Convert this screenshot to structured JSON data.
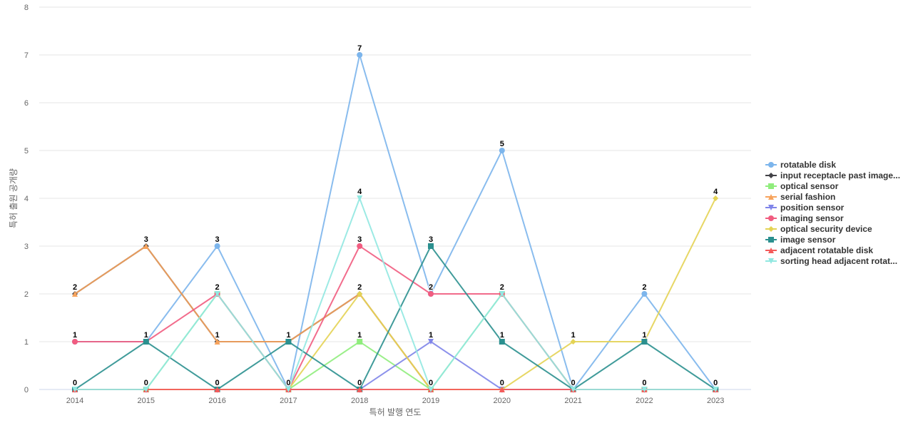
{
  "chart_data": {
    "type": "line",
    "xlabel": "특허 발행 연도",
    "ylabel": "특허 출원 공개량",
    "ylim": [
      0,
      8
    ],
    "yticks": [
      0,
      1,
      2,
      3,
      4,
      5,
      6,
      7,
      8
    ],
    "categories": [
      "2014",
      "2015",
      "2016",
      "2017",
      "2018",
      "2019",
      "2020",
      "2021",
      "2022",
      "2023"
    ],
    "grid": true,
    "legend_position": "right",
    "series": [
      {
        "name": "rotatable disk",
        "color": "#7cb5ec",
        "marker": "circle",
        "values": [
          1,
          1,
          3,
          0,
          7,
          2,
          5,
          0,
          2,
          0
        ]
      },
      {
        "name": "input receptacle past image...",
        "color": "#434348",
        "marker": "diamond",
        "values": [
          2,
          3,
          1,
          1,
          2,
          0,
          0,
          0,
          0,
          0
        ]
      },
      {
        "name": "optical sensor",
        "color": "#90ed7d",
        "marker": "square",
        "values": [
          0,
          0,
          2,
          0,
          1,
          0,
          2,
          0,
          0,
          0
        ]
      },
      {
        "name": "serial fashion",
        "color": "#f7a35c",
        "marker": "triangle",
        "values": [
          2,
          3,
          1,
          1,
          2,
          0,
          0,
          0,
          0,
          0
        ]
      },
      {
        "name": "position sensor",
        "color": "#8085e9",
        "marker": "triangle-down",
        "values": [
          0,
          0,
          0,
          0,
          0,
          1,
          0,
          0,
          0,
          0
        ]
      },
      {
        "name": "imaging sensor",
        "color": "#f15c80",
        "marker": "circle",
        "values": [
          1,
          1,
          2,
          0,
          3,
          2,
          2,
          0,
          0,
          0
        ]
      },
      {
        "name": "optical security device",
        "color": "#e4d354",
        "marker": "diamond",
        "values": [
          0,
          0,
          0,
          0,
          2,
          0,
          0,
          1,
          1,
          4
        ]
      },
      {
        "name": "image sensor",
        "color": "#2b908f",
        "marker": "square",
        "values": [
          0,
          1,
          0,
          1,
          0,
          3,
          1,
          0,
          1,
          0
        ]
      },
      {
        "name": "adjacent rotatable disk",
        "color": "#f45b5b",
        "marker": "triangle",
        "values": [
          0,
          0,
          0,
          0,
          0,
          0,
          0,
          0,
          0,
          0
        ]
      },
      {
        "name": "sorting head adjacent rotat...",
        "color": "#91e8e1",
        "marker": "triangle-down",
        "values": [
          0,
          0,
          2,
          0,
          4,
          0,
          2,
          0,
          0,
          0
        ]
      }
    ],
    "data_labels": [
      {
        "x": "2014",
        "values": [
          "2",
          "1",
          "0"
        ]
      },
      {
        "x": "2015",
        "values": [
          "3",
          "1",
          "0"
        ]
      },
      {
        "x": "2016",
        "values": [
          "3",
          "2",
          "1",
          "0"
        ]
      },
      {
        "x": "2017",
        "values": [
          "1",
          "0"
        ]
      },
      {
        "x": "2018",
        "values": [
          "7",
          "4",
          "3",
          "2",
          "1",
          "0"
        ]
      },
      {
        "x": "2019",
        "values": [
          "3",
          "2",
          "1",
          "0"
        ]
      },
      {
        "x": "2020",
        "values": [
          "5",
          "2",
          "1",
          "0"
        ]
      },
      {
        "x": "2021",
        "values": [
          "1",
          "0"
        ]
      },
      {
        "x": "2022",
        "values": [
          "2",
          "1",
          "0"
        ]
      },
      {
        "x": "2023",
        "values": [
          "4",
          "0"
        ]
      }
    ]
  }
}
